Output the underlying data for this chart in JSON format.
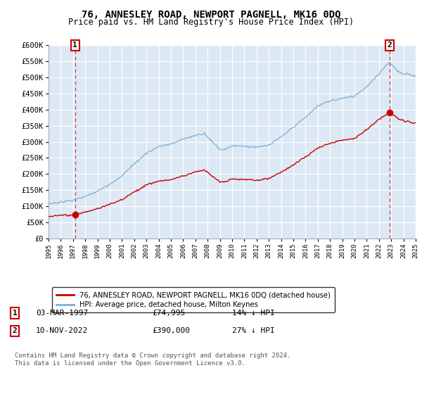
{
  "title": "76, ANNESLEY ROAD, NEWPORT PAGNELL, MK16 0DQ",
  "subtitle": "Price paid vs. HM Land Registry's House Price Index (HPI)",
  "ylabel_ticks": [
    "£0",
    "£50K",
    "£100K",
    "£150K",
    "£200K",
    "£250K",
    "£300K",
    "£350K",
    "£400K",
    "£450K",
    "£500K",
    "£550K",
    "£600K"
  ],
  "ytick_vals": [
    0,
    50000,
    100000,
    150000,
    200000,
    250000,
    300000,
    350000,
    400000,
    450000,
    500000,
    550000,
    600000
  ],
  "hpi_color": "#7aafd4",
  "price_color": "#cc0000",
  "dashed_line_color": "#cc0000",
  "background_color": "#ffffff",
  "plot_bg_color": "#dce9f5",
  "grid_color": "#ffffff",
  "legend_label_price": "76, ANNESLEY ROAD, NEWPORT PAGNELL, MK16 0DQ (detached house)",
  "legend_label_hpi": "HPI: Average price, detached house, Milton Keynes",
  "sale1_label": "1",
  "sale1_date": "03-MAR-1997",
  "sale1_price": "£74,995",
  "sale1_pct": "14% ↓ HPI",
  "sale1_year": 1997.17,
  "sale1_value": 74995,
  "sale2_label": "2",
  "sale2_date": "10-NOV-2022",
  "sale2_price": "£390,000",
  "sale2_pct": "27% ↓ HPI",
  "sale2_year": 2022.86,
  "sale2_value": 390000,
  "footnote": "Contains HM Land Registry data © Crown copyright and database right 2024.\nThis data is licensed under the Open Government Licence v3.0.",
  "xmin": 1995,
  "xmax": 2025,
  "ymin": 0,
  "ymax": 600000
}
